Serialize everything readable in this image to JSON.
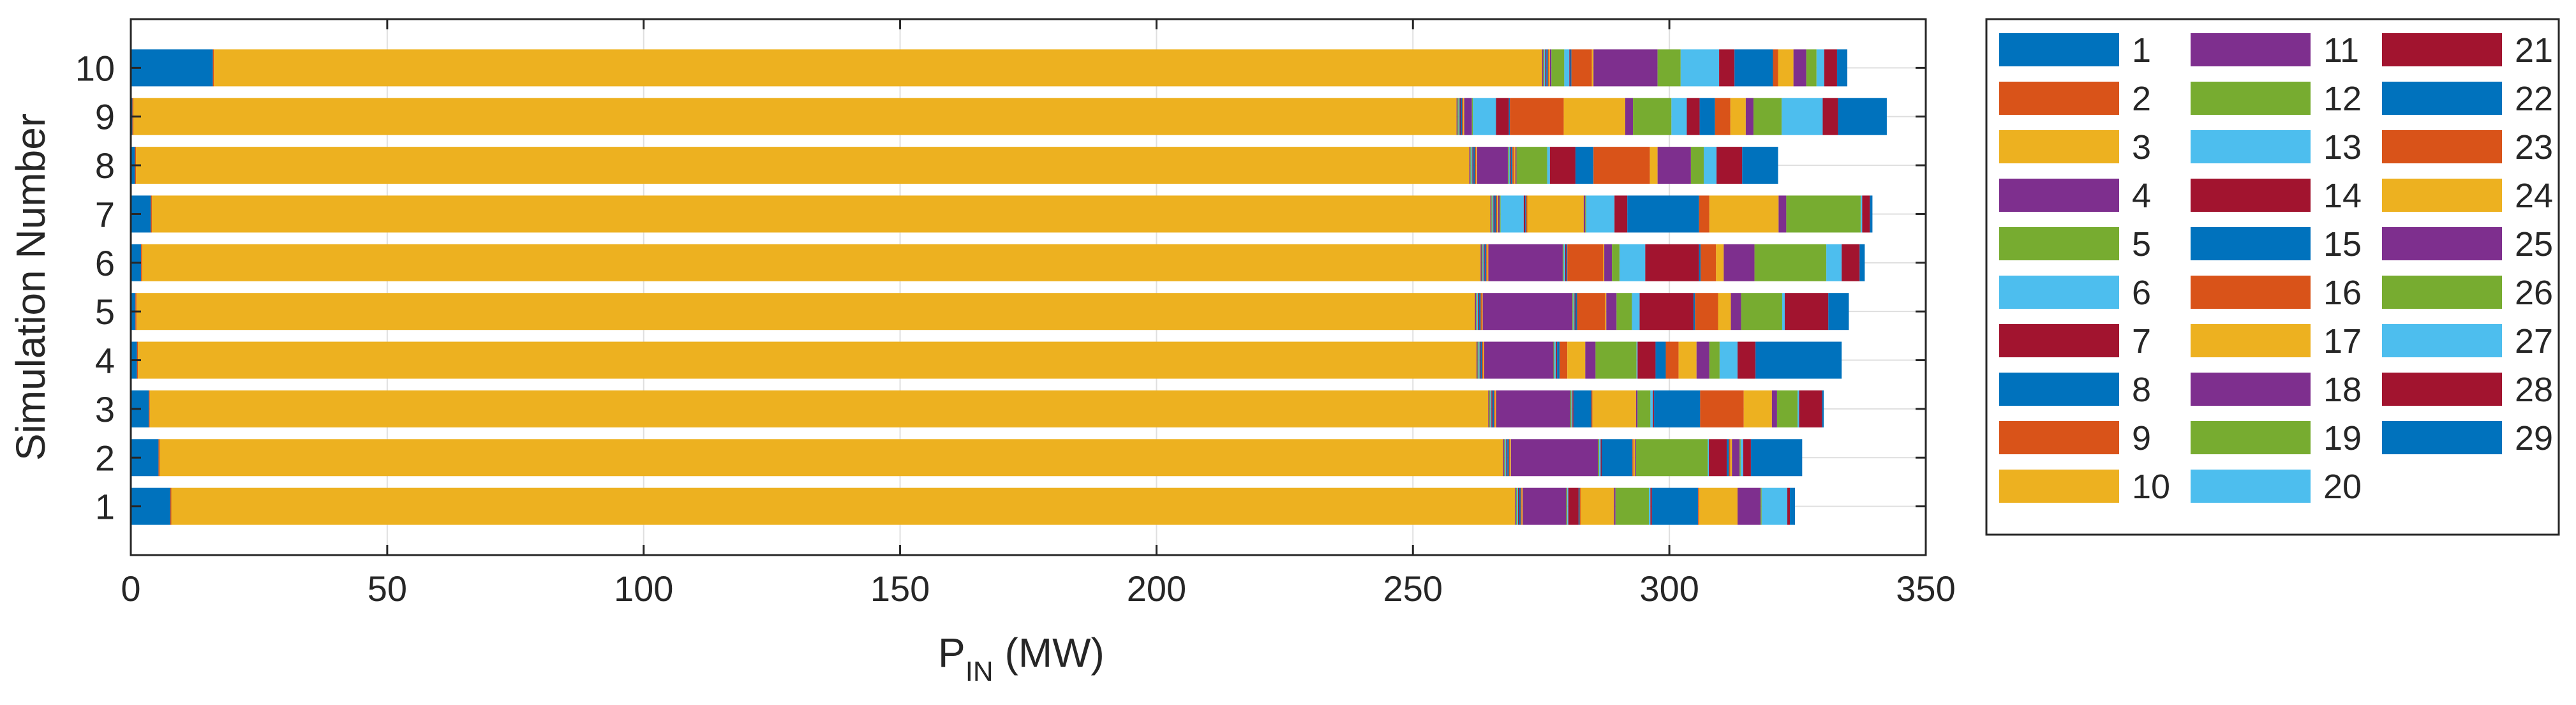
{
  "chart_data": {
    "type": "bar",
    "orientation": "horizontal",
    "stacked": true,
    "title": "",
    "xlabel": "P",
    "xlabel_subscript": "IN",
    "xlabel_unit": " (MW)",
    "ylabel": "Simulation Number",
    "xlim": [
      0,
      350
    ],
    "xticks": [
      "0",
      "50",
      "100",
      "150",
      "200",
      "250",
      "300",
      "350"
    ],
    "xtick_values": [
      0,
      50,
      100,
      150,
      200,
      250,
      300,
      350
    ],
    "grid": true,
    "legend_position": "right",
    "categories": [
      "1",
      "2",
      "3",
      "4",
      "5",
      "6",
      "7",
      "8",
      "9",
      "10"
    ],
    "series_names": [
      "1",
      "2",
      "3",
      "4",
      "5",
      "6",
      "7",
      "8",
      "9",
      "10",
      "11",
      "12",
      "13",
      "14",
      "15",
      "16",
      "17",
      "18",
      "19",
      "20",
      "21",
      "22",
      "23",
      "24",
      "25",
      "26",
      "27",
      "28",
      "29"
    ],
    "series_colors": [
      "#0072BD",
      "#D95319",
      "#EDB120",
      "#7E2F8E",
      "#77AC30",
      "#4DBEEE",
      "#A2142F",
      "#0072BD",
      "#D95319",
      "#EDB120",
      "#7E2F8E",
      "#77AC30",
      "#4DBEEE",
      "#A2142F",
      "#0072BD",
      "#D95319",
      "#EDB120",
      "#7E2F8E",
      "#77AC30",
      "#4DBEEE",
      "#A2142F",
      "#0072BD",
      "#D95319",
      "#EDB120",
      "#7E2F8E",
      "#77AC30",
      "#4DBEEE",
      "#A2142F",
      "#0072BD"
    ],
    "values": [
      [
        7.7,
        0.2,
        262,
        0.2,
        0.2,
        0.2,
        0.2,
        0.3,
        0.2,
        0.2,
        8.5,
        0.2,
        0.2,
        2.0,
        0.2,
        0.2,
        6.5,
        0.3,
        6.5,
        0.3,
        0.3,
        9.0,
        0.2,
        7.5,
        4.5,
        0.2,
        5.0,
        0.5,
        1.0
      ],
      [
        5.4,
        0.2,
        262,
        0.2,
        0.2,
        0.2,
        0.2,
        0.3,
        0.2,
        0.2,
        17.0,
        0.2,
        0.3,
        0.2,
        6.0,
        0.2,
        0.3,
        0.2,
        14.0,
        0.2,
        3.5,
        0.4,
        0.3,
        0.3,
        1.5,
        0.2,
        0.5,
        1.5,
        10.0
      ],
      [
        3.5,
        0.2,
        261,
        0.2,
        0.2,
        0.2,
        0.2,
        0.3,
        0.2,
        0.2,
        14.5,
        0.2,
        0.2,
        0.2,
        3.5,
        0.2,
        8.5,
        0.3,
        2.5,
        0.5,
        0.2,
        9.0,
        8.5,
        5.5,
        1.0,
        4.0,
        0.3,
        4.5,
        0.3
      ],
      [
        1.2,
        0.2,
        261,
        0.2,
        0.2,
        0.2,
        0.2,
        0.3,
        0.2,
        0.2,
        13.5,
        0.2,
        0.3,
        0.2,
        0.5,
        1.5,
        3.5,
        2.0,
        8.0,
        0.2,
        3.5,
        2.0,
        2.5,
        3.5,
        2.5,
        2.0,
        3.5,
        3.5,
        16.8
      ],
      [
        0.9,
        0.2,
        261,
        0.2,
        0.2,
        0.2,
        0.2,
        0.3,
        0.2,
        0.2,
        17.5,
        0.2,
        0.2,
        0.2,
        0.3,
        5.5,
        0.2,
        2.0,
        3.0,
        1.5,
        10.5,
        0.3,
        4.5,
        2.5,
        2.0,
        8.0,
        0.5,
        8.5,
        4.0
      ],
      [
        2.0,
        0.2,
        261,
        0.2,
        0.2,
        0.2,
        0.2,
        0.3,
        0.2,
        0.2,
        14.5,
        0.2,
        0.3,
        0.2,
        0.2,
        7.0,
        0.2,
        1.5,
        1.5,
        5.0,
        10.5,
        0.3,
        3.0,
        1.5,
        6.0,
        14.0,
        3.0,
        3.5,
        1.0
      ],
      [
        3.9,
        0.2,
        261,
        0.2,
        0.2,
        0.2,
        0.2,
        0.3,
        0.2,
        0.2,
        0.3,
        0.2,
        4.5,
        0.3,
        0.2,
        0.2,
        11.0,
        0.3,
        0.2,
        5.5,
        2.5,
        14.0,
        2.0,
        13.5,
        1.5,
        14.5,
        0.3,
        1.5,
        0.5
      ],
      [
        0.8,
        0.2,
        260,
        0.2,
        0.2,
        0.2,
        0.2,
        0.3,
        0.2,
        0.2,
        6.0,
        0.2,
        0.2,
        0.2,
        0.3,
        0.3,
        0.3,
        0.2,
        6.0,
        0.5,
        5.0,
        3.5,
        11.0,
        1.5,
        6.5,
        2.5,
        2.5,
        5.0,
        7.0
      ],
      [
        0.3,
        0.2,
        258,
        0.2,
        0.2,
        0.2,
        0.2,
        0.3,
        0.2,
        0.2,
        1.5,
        0.2,
        4.5,
        2.5,
        0.2,
        10.5,
        12.0,
        1.5,
        7.5,
        3.0,
        2.5,
        3.0,
        3.0,
        3.0,
        1.5,
        5.5,
        8.0,
        3.0,
        9.5
      ],
      [
        16.0,
        0.2,
        259,
        0.2,
        0.2,
        0.2,
        0.2,
        0.3,
        0.2,
        0.2,
        0.3,
        2.5,
        1.0,
        0.2,
        0.2,
        4.0,
        0.3,
        12.5,
        4.5,
        7.5,
        3.0,
        7.5,
        1.0,
        3.0,
        2.5,
        2.0,
        1.5,
        2.5,
        2.0
      ]
    ]
  }
}
